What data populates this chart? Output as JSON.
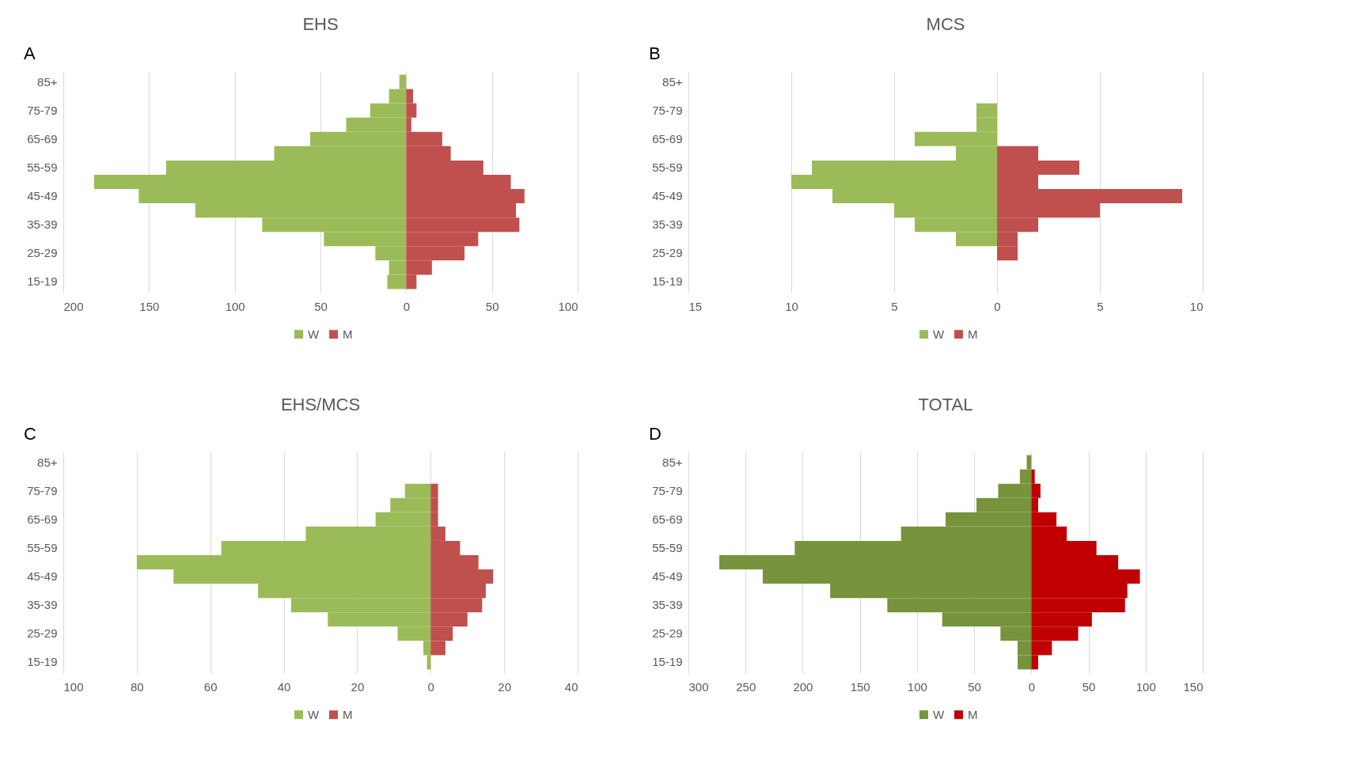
{
  "chart_data": [
    {
      "type": "bar",
      "title": "EHS",
      "annotations": [
        "A"
      ],
      "orientation": "horizontal",
      "stacked": true,
      "legend": "bottom",
      "grid": "x",
      "categories": [
        "85+",
        null,
        "75-79",
        null,
        "65-69",
        null,
        "55-59",
        null,
        "45-49",
        null,
        "35-39",
        null,
        "25-29",
        null,
        "15-19"
      ],
      "series": [
        {
          "name": "W",
          "color": "#9bbb59",
          "values": [
            -4,
            -10,
            -21,
            -35,
            -56,
            -77,
            -140,
            -182,
            -156,
            -123,
            -84,
            -48,
            -18,
            -10,
            -11
          ]
        },
        {
          "name": "M",
          "color": "#c0504d",
          "values": [
            0,
            4,
            6,
            3,
            21,
            26,
            45,
            61,
            69,
            64,
            66,
            42,
            34,
            15,
            6
          ]
        }
      ],
      "xlim": [
        -200,
        100
      ],
      "xticks": [
        {
          "value": -200,
          "label": "200"
        },
        {
          "value": -150,
          "label": "150"
        },
        {
          "value": -100,
          "label": "100"
        },
        {
          "value": -50,
          "label": "50"
        },
        0,
        50,
        100
      ]
    },
    {
      "type": "bar",
      "title": "MCS",
      "annotations": [
        "B"
      ],
      "orientation": "horizontal",
      "stacked": true,
      "legend": "bottom",
      "grid": "x",
      "categories": [
        "85+",
        null,
        "75-79",
        null,
        "65-69",
        null,
        "55-59",
        null,
        "45-49",
        null,
        "35-39",
        null,
        "25-29",
        null,
        "15-19"
      ],
      "series": [
        {
          "name": "W",
          "color": "#9bbb59",
          "values": [
            0,
            0,
            -1,
            -1,
            -4,
            -2,
            -9,
            -10,
            -8,
            -5,
            -4,
            -2,
            0,
            0,
            0
          ]
        },
        {
          "name": "M",
          "color": "#c0504d",
          "values": [
            0,
            0,
            0,
            0,
            0,
            2,
            4,
            2,
            9,
            5,
            2,
            1,
            1,
            0,
            0
          ]
        }
      ],
      "xlim": [
        -15,
        10
      ],
      "xticks": [
        {
          "value": -15,
          "label": "15"
        },
        {
          "value": -10,
          "label": "10"
        },
        {
          "value": -5,
          "label": "5"
        },
        0,
        5,
        10
      ]
    },
    {
      "type": "bar",
      "title": "EHS/MCS",
      "annotations": [
        "C"
      ],
      "orientation": "horizontal",
      "stacked": true,
      "legend": "bottom",
      "grid": "x",
      "categories": [
        "85+",
        null,
        "75-79",
        null,
        "65-69",
        null,
        "55-59",
        null,
        "45-49",
        null,
        "35-39",
        null,
        "25-29",
        null,
        "15-19"
      ],
      "series": [
        {
          "name": "W",
          "color": "#9bbb59",
          "values": [
            0,
            0,
            -7,
            -11,
            -15,
            -34,
            -57,
            -80,
            -70,
            -47,
            -38,
            -28,
            -9,
            -2,
            -1
          ]
        },
        {
          "name": "M",
          "color": "#c0504d",
          "values": [
            0,
            0,
            2,
            2,
            2,
            4,
            8,
            13,
            17,
            15,
            14,
            10,
            6,
            4,
            0
          ]
        }
      ],
      "xlim": [
        -100,
        40
      ],
      "xticks": [
        {
          "value": -100,
          "label": "100"
        },
        {
          "value": -80,
          "label": "80"
        },
        {
          "value": -60,
          "label": "60"
        },
        {
          "value": -40,
          "label": "40"
        },
        {
          "value": -20,
          "label": "20"
        },
        0,
        20,
        40
      ]
    },
    {
      "type": "bar",
      "title": "TOTAL",
      "annotations": [
        "D"
      ],
      "orientation": "horizontal",
      "stacked": true,
      "legend": "bottom",
      "grid": "x",
      "categories": [
        "85+",
        null,
        "75-79",
        null,
        "65-69",
        null,
        "55-59",
        null,
        "45-49",
        null,
        "35-39",
        null,
        "25-29",
        null,
        "15-19"
      ],
      "series": [
        {
          "name": "W",
          "color": "#77933c",
          "values": [
            -4,
            -10,
            -29,
            -48,
            -75,
            -114,
            -207,
            -273,
            -235,
            -176,
            -126,
            -78,
            -27,
            -12,
            -12
          ]
        },
        {
          "name": "M",
          "color": "#c00000",
          "values": [
            0,
            3,
            8,
            6,
            22,
            31,
            57,
            76,
            95,
            84,
            82,
            53,
            41,
            18,
            6
          ]
        }
      ],
      "xlim": [
        -300,
        150
      ],
      "xticks": [
        {
          "value": -300,
          "label": "300"
        },
        {
          "value": -250,
          "label": "250"
        },
        {
          "value": -200,
          "label": "200"
        },
        {
          "value": -150,
          "label": "150"
        },
        {
          "value": -100,
          "label": "100"
        },
        {
          "value": -50,
          "label": "50"
        },
        0,
        50,
        100,
        150
      ]
    }
  ]
}
